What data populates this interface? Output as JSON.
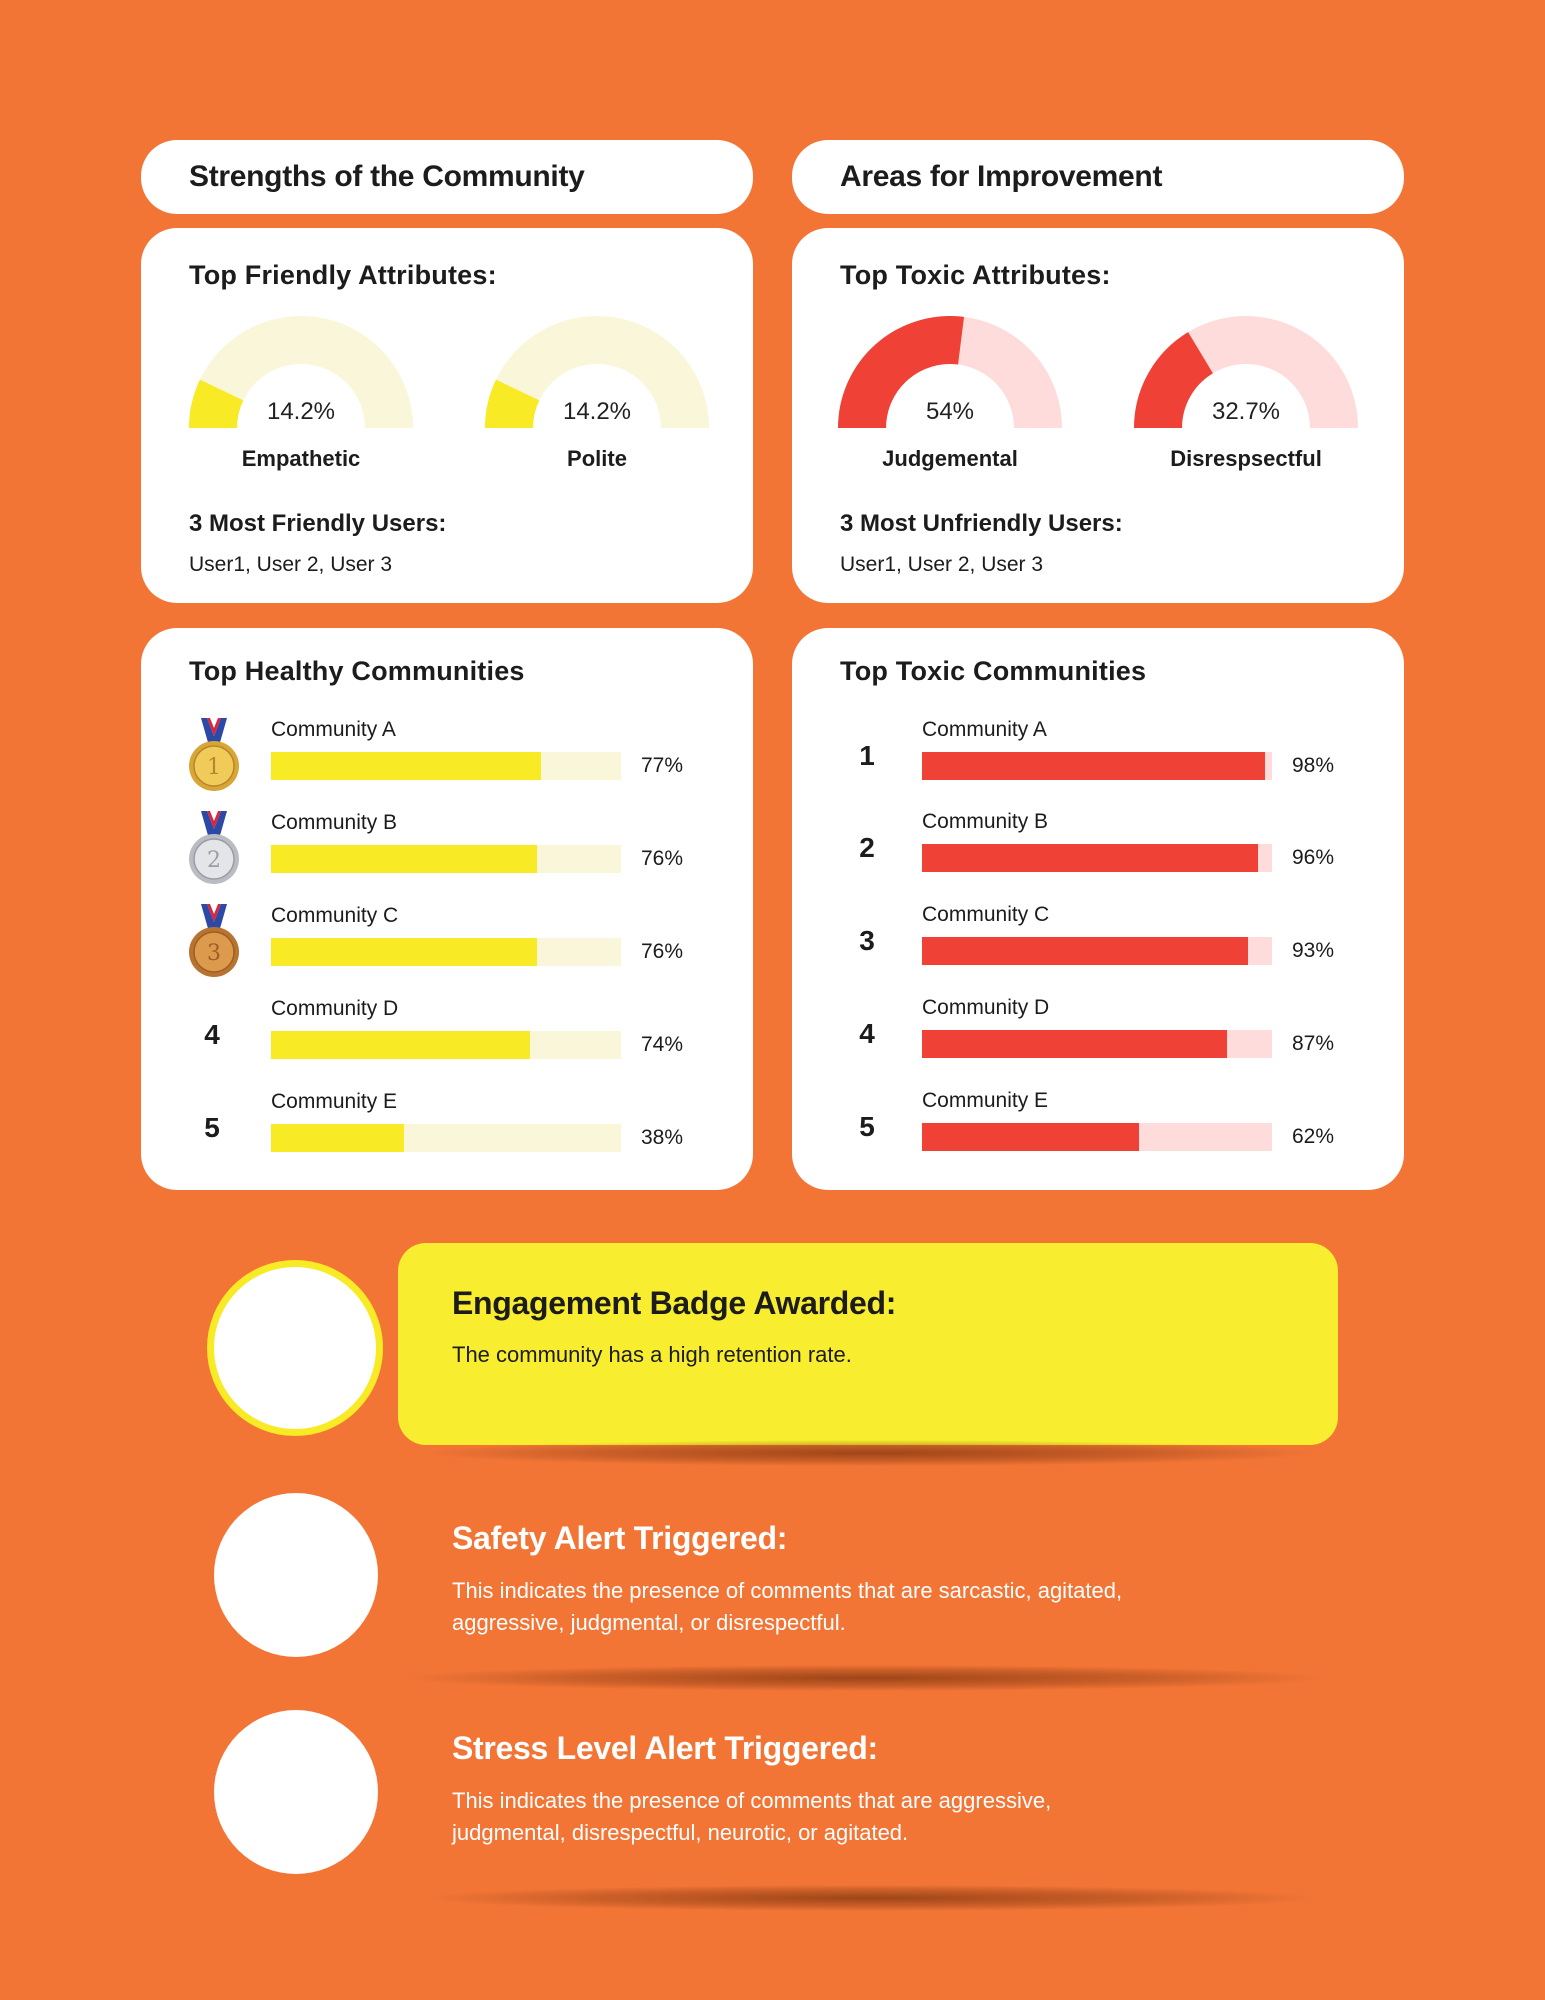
{
  "strengths": {
    "header": "Strengths of the Community",
    "attributes_title": "Top Friendly Attributes:",
    "gauges": [
      {
        "value": "14.2%",
        "fraction": 0.142,
        "label": "Empathetic"
      },
      {
        "value": "14.2%",
        "fraction": 0.142,
        "label": "Polite"
      }
    ],
    "users_title": "3 Most Friendly Users:",
    "users": "User1, User 2, User 3",
    "colors": {
      "fill": "#f8ea24",
      "track": "#faf6d9"
    }
  },
  "improvement": {
    "header": "Areas for Improvement",
    "attributes_title": "Top Toxic Attributes:",
    "gauges": [
      {
        "value": "54%",
        "fraction": 0.54,
        "label": "Judgemental"
      },
      {
        "value": "32.7%",
        "fraction": 0.327,
        "label": "Disrespsectful"
      }
    ],
    "users_title": "3 Most Unfriendly Users:",
    "users": "User1, User 2, User 3",
    "colors": {
      "fill": "#ef4136",
      "track": "#fddcdb"
    }
  },
  "healthy": {
    "title": "Top Healthy Communities",
    "items": [
      {
        "rank": "1",
        "medal": "gold-medal-icon",
        "name": "Community A",
        "pct": "77%",
        "value": 0.77
      },
      {
        "rank": "2",
        "medal": "silver-medal-icon",
        "name": "Community B",
        "pct": "76%",
        "value": 0.76
      },
      {
        "rank": "3",
        "medal": "bronze-medal-icon",
        "name": "Community C",
        "pct": "76%",
        "value": 0.76
      },
      {
        "rank": "4",
        "medal": "",
        "name": "Community D",
        "pct": "74%",
        "value": 0.74
      },
      {
        "rank": "5",
        "medal": "",
        "name": "Community E",
        "pct": "38%",
        "value": 0.38
      }
    ]
  },
  "toxic": {
    "title": "Top Toxic Communities",
    "items": [
      {
        "rank": "1",
        "name": "Community A",
        "pct": "98%",
        "value": 0.98
      },
      {
        "rank": "2",
        "name": "Community B",
        "pct": "96%",
        "value": 0.96
      },
      {
        "rank": "3",
        "name": "Community C",
        "pct": "93%",
        "value": 0.93
      },
      {
        "rank": "4",
        "name": "Community D",
        "pct": "87%",
        "value": 0.87
      },
      {
        "rank": "5",
        "name": "Community E",
        "pct": "62%",
        "value": 0.62
      }
    ]
  },
  "alerts": {
    "engagement": {
      "title": "Engagement Badge Awarded:",
      "desc": "The community has a high retention rate."
    },
    "safety": {
      "title": "Safety Alert Triggered:",
      "desc": "This indicates the presence of comments that are sarcastic, agitated, aggressive, judgmental, or disrespectful."
    },
    "stress": {
      "title": "Stress Level Alert Triggered:",
      "desc": "This indicates the presence of comments that are aggressive, judgmental, disrespectful, neurotic, or agitated."
    }
  },
  "colors": {
    "background": "#f27536",
    "yellow": "#f8ea24",
    "red": "#ef4136",
    "white": "#ffffff"
  }
}
